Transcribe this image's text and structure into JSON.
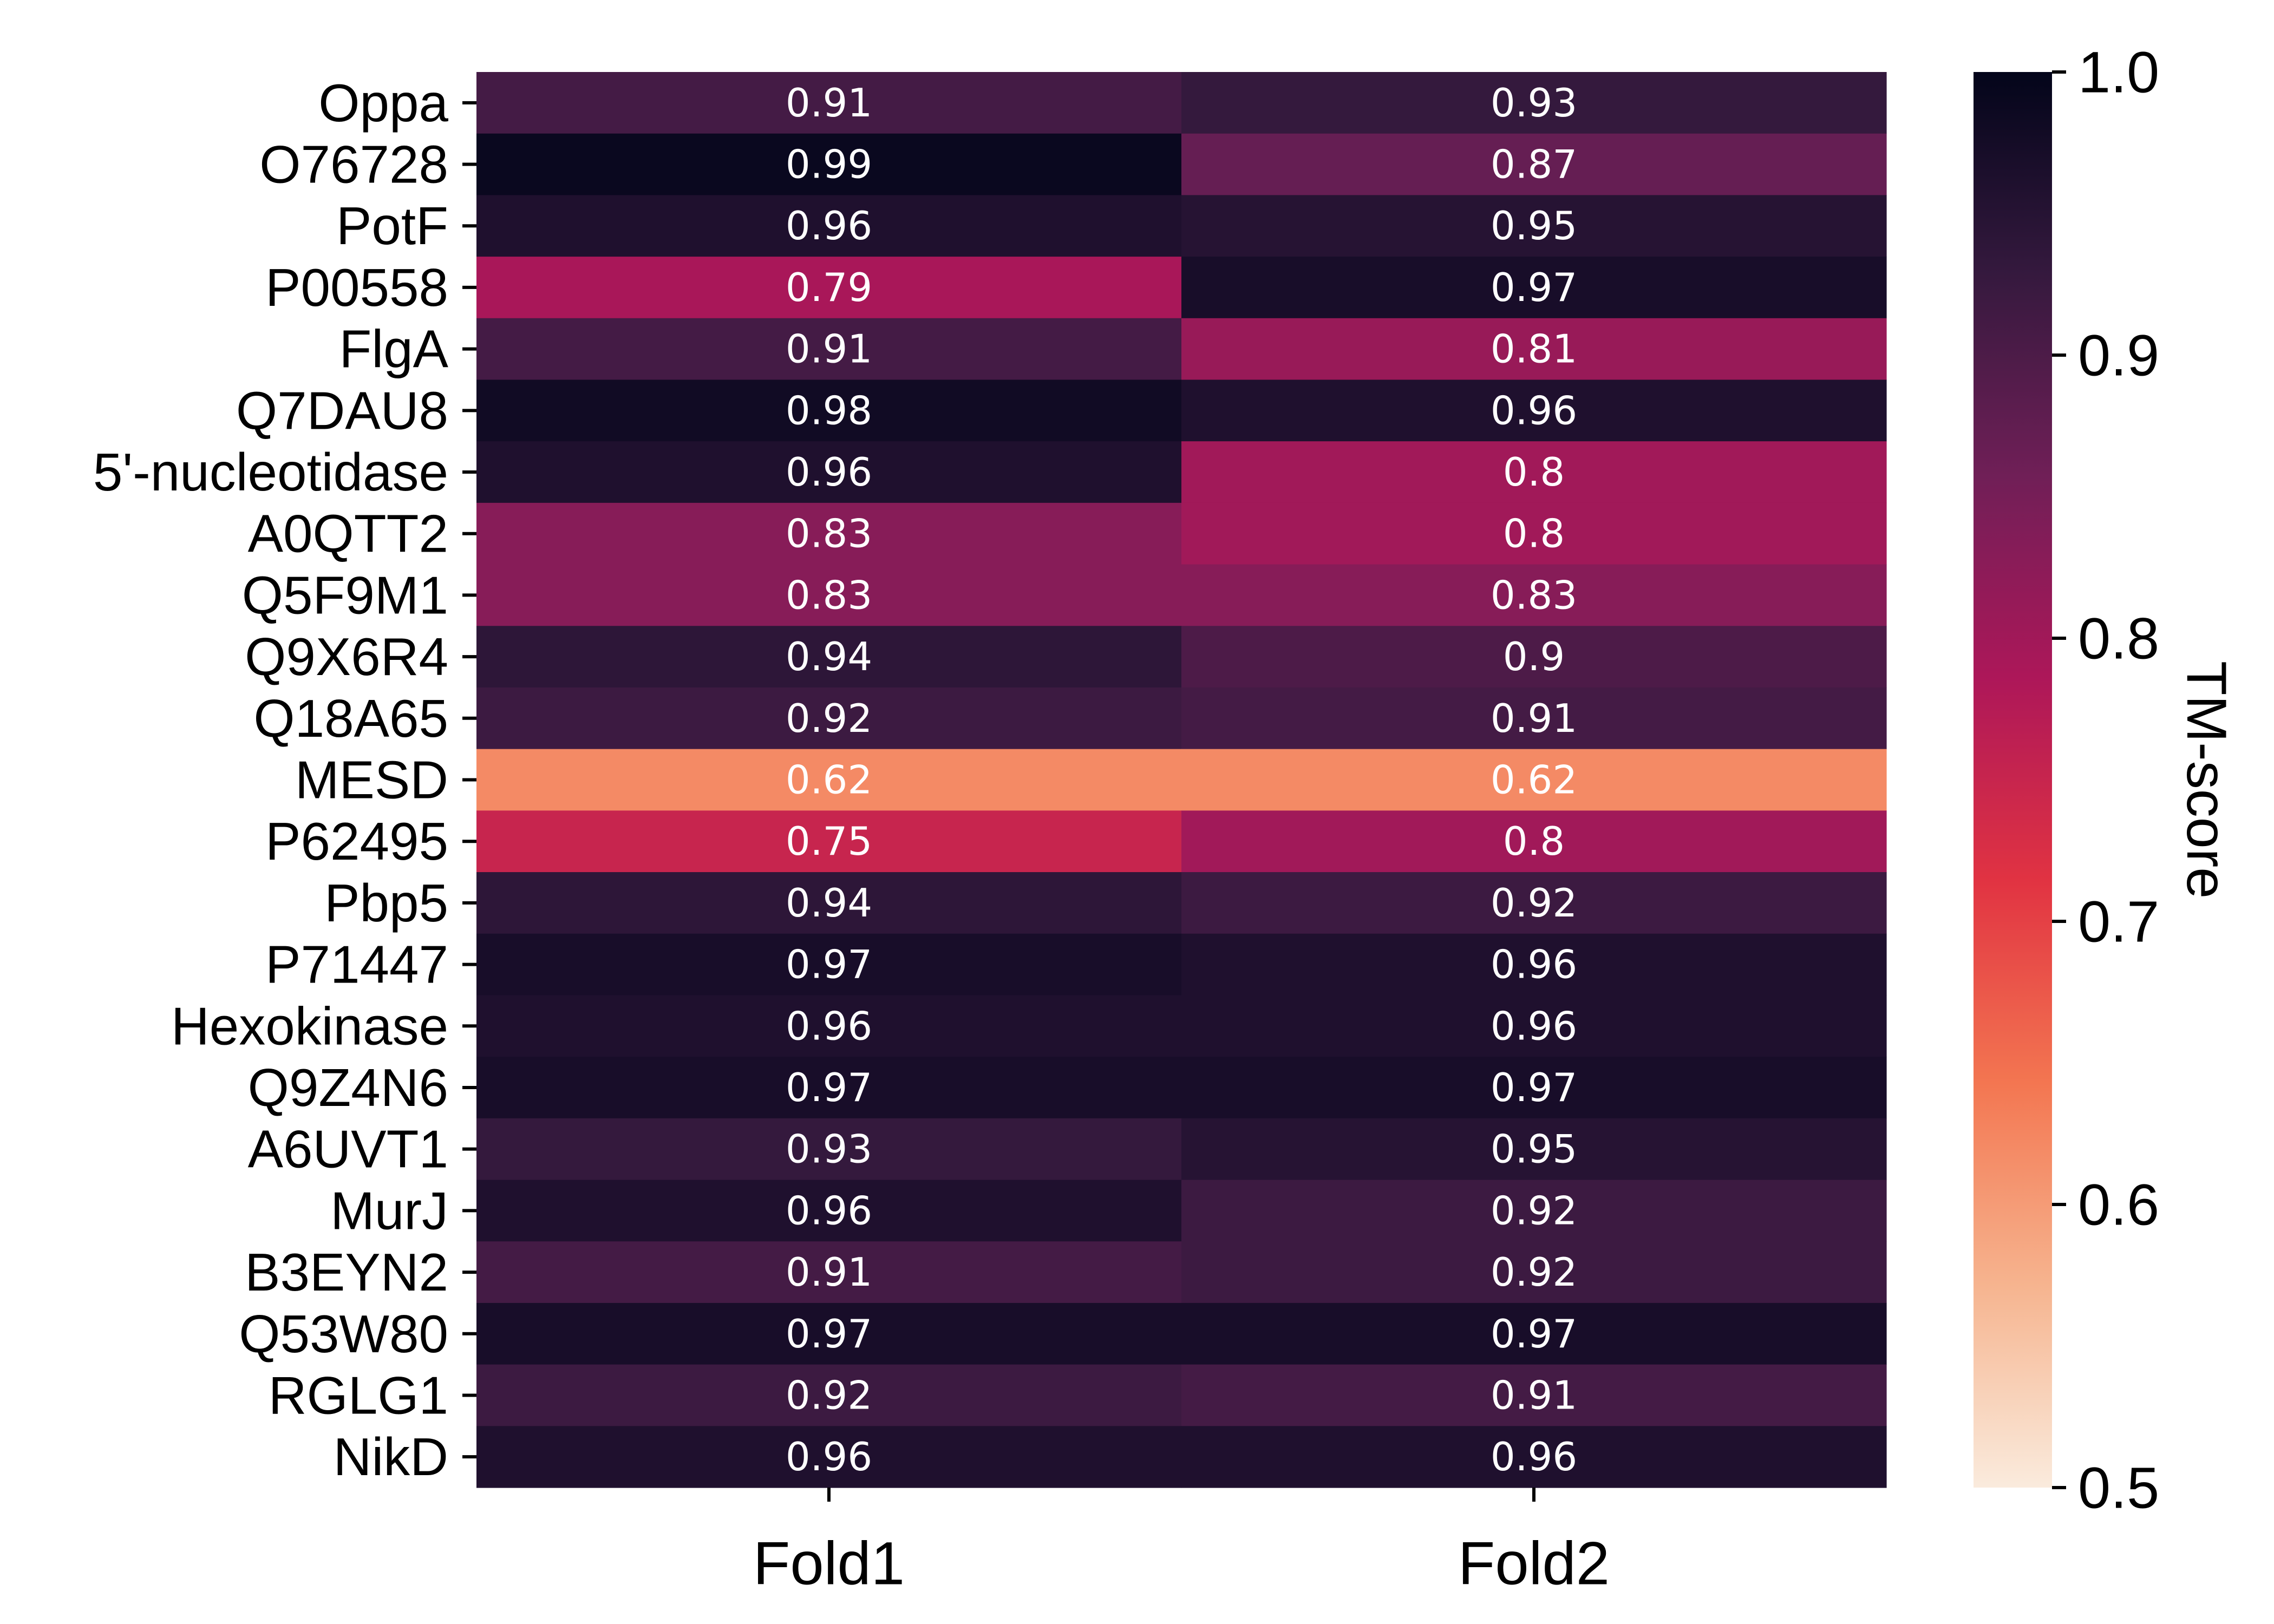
{
  "chart_data": {
    "type": "heatmap",
    "rows": [
      "Oppa",
      "O76728",
      "PotF",
      "P00558",
      "FlgA",
      "Q7DAU8",
      "5'-nucleotidase",
      "A0QTT2",
      "Q5F9M1",
      "Q9X6R4",
      "Q18A65",
      "MESD",
      "P62495",
      "Pbp5",
      "P71447",
      "Hexokinase",
      "Q9Z4N6",
      "A6UVT1",
      "MurJ",
      "B3EYN2",
      "Q53W80",
      "RGLG1",
      "NikD"
    ],
    "columns": [
      "Fold1",
      "Fold2"
    ],
    "values": [
      [
        0.91,
        0.93
      ],
      [
        0.99,
        0.87
      ],
      [
        0.96,
        0.95
      ],
      [
        0.79,
        0.97
      ],
      [
        0.91,
        0.81
      ],
      [
        0.98,
        0.96
      ],
      [
        0.96,
        0.8
      ],
      [
        0.83,
        0.8
      ],
      [
        0.83,
        0.83
      ],
      [
        0.94,
        0.9
      ],
      [
        0.92,
        0.91
      ],
      [
        0.62,
        0.62
      ],
      [
        0.75,
        0.8
      ],
      [
        0.94,
        0.92
      ],
      [
        0.97,
        0.96
      ],
      [
        0.96,
        0.96
      ],
      [
        0.97,
        0.97
      ],
      [
        0.93,
        0.95
      ],
      [
        0.96,
        0.92
      ],
      [
        0.91,
        0.92
      ],
      [
        0.97,
        0.97
      ],
      [
        0.92,
        0.91
      ],
      [
        0.96,
        0.96
      ]
    ],
    "cell_labels": [
      [
        "0.91",
        "0.93"
      ],
      [
        "0.99",
        "0.87"
      ],
      [
        "0.96",
        "0.95"
      ],
      [
        "0.79",
        "0.97"
      ],
      [
        "0.91",
        "0.81"
      ],
      [
        "0.98",
        "0.96"
      ],
      [
        "0.96",
        "0.8"
      ],
      [
        "0.83",
        "0.8"
      ],
      [
        "0.83",
        "0.83"
      ],
      [
        "0.94",
        "0.9"
      ],
      [
        "0.92",
        "0.91"
      ],
      [
        "0.62",
        "0.62"
      ],
      [
        "0.75",
        "0.8"
      ],
      [
        "0.94",
        "0.92"
      ],
      [
        "0.97",
        "0.96"
      ],
      [
        "0.96",
        "0.96"
      ],
      [
        "0.97",
        "0.97"
      ],
      [
        "0.93",
        "0.95"
      ],
      [
        "0.96",
        "0.92"
      ],
      [
        "0.91",
        "0.92"
      ],
      [
        "0.97",
        "0.97"
      ],
      [
        "0.92",
        "0.91"
      ],
      [
        "0.96",
        "0.96"
      ]
    ],
    "colorbar": {
      "label": "TM-score",
      "range": [
        0.5,
        1.0
      ],
      "ticks": [
        1.0,
        0.9,
        0.8,
        0.7,
        0.6,
        0.5
      ],
      "tick_labels": [
        "1.0",
        "0.9",
        "0.8",
        "0.7",
        "0.6",
        "0.5"
      ],
      "colormap": "rocket_r",
      "colormap_stops": [
        "#faebdd",
        "#f6b48f",
        "#f37651",
        "#e13342",
        "#ad1759",
        "#701f57",
        "#35193e",
        "#03051a"
      ]
    },
    "grid": false
  }
}
